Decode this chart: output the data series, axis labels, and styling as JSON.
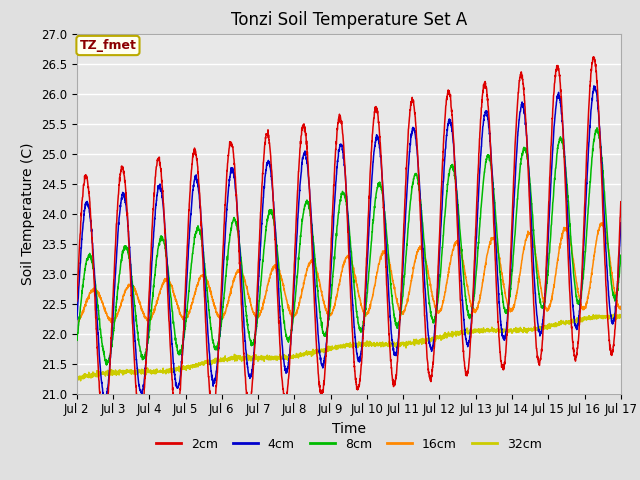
{
  "title": "Tonzi Soil Temperature Set A",
  "xlabel": "Time",
  "ylabel": "Soil Temperature (C)",
  "annotation": "TZ_fmet",
  "ylim": [
    21.0,
    27.0
  ],
  "yticks": [
    21.0,
    21.5,
    22.0,
    22.5,
    23.0,
    23.5,
    24.0,
    24.5,
    25.0,
    25.5,
    26.0,
    26.5,
    27.0
  ],
  "xtick_labels": [
    "Jul 2",
    "Jul 3",
    "Jul 4",
    "Jul 5",
    "Jul 6",
    "Jul 7",
    "Jul 8",
    "Jul 9",
    "Jul 10",
    "Jul 11",
    "Jul 12",
    "Jul 13",
    "Jul 14",
    "Jul 15",
    "Jul 16",
    "Jul 17"
  ],
  "series_colors": [
    "#dd0000",
    "#0000cc",
    "#00bb00",
    "#ff8800",
    "#cccc00"
  ],
  "series_labels": [
    "2cm",
    "4cm",
    "8cm",
    "16cm",
    "32cm"
  ],
  "background_color": "#e0e0e0",
  "plot_bg_color": "#e8e8e8",
  "grid_color": "#ffffff",
  "title_fontsize": 12,
  "axis_label_fontsize": 10,
  "tick_fontsize": 8.5,
  "legend_fontsize": 9
}
